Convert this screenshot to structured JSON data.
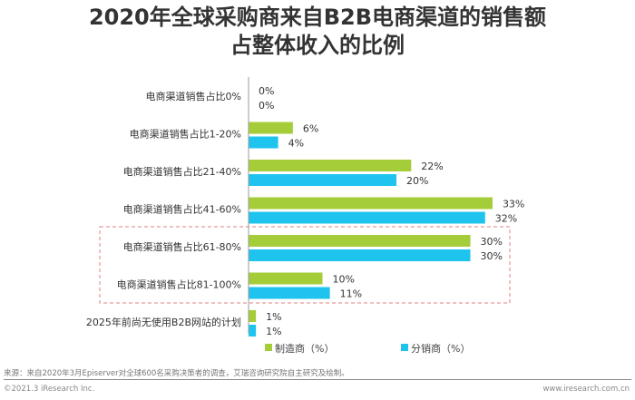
{
  "title_line1": "2020年全球采购商来自B2B电商渠道的销售额",
  "title_line2": "占整体收入的比例",
  "source": "来源：来自2020年3月Episerver对全球600名采购决策者的调查，艾瑞咨询研究院自主研究及绘制。",
  "copyright": "©2021.3 iResearch Inc.",
  "website": "www.iresearch.com.cn",
  "chart_data": {
    "type": "bar",
    "orientation": "horizontal",
    "categories": [
      "电商渠道销售占比0%",
      "电商渠道销售占比1-20%",
      "电商渠道销售占比21-40%",
      "电商渠道销售占比41-60%",
      "电商渠道销售占比61-80%",
      "电商渠道销售占比81-100%",
      "2025年前尚无使用B2B网站的计划"
    ],
    "series": [
      {
        "name": "制造商（%）",
        "color": "#a5cd39",
        "values": [
          0,
          6,
          22,
          33,
          30,
          10,
          1
        ]
      },
      {
        "name": "分销商（%）",
        "color": "#1fc4ee",
        "values": [
          0,
          4,
          20,
          32,
          30,
          11,
          1
        ]
      }
    ],
    "value_suffix": "%",
    "highlighted_categories": [
      "电商渠道销售占比61-80%",
      "电商渠道销售占比81-100%"
    ],
    "legend_position": "bottom",
    "grid": false
  }
}
